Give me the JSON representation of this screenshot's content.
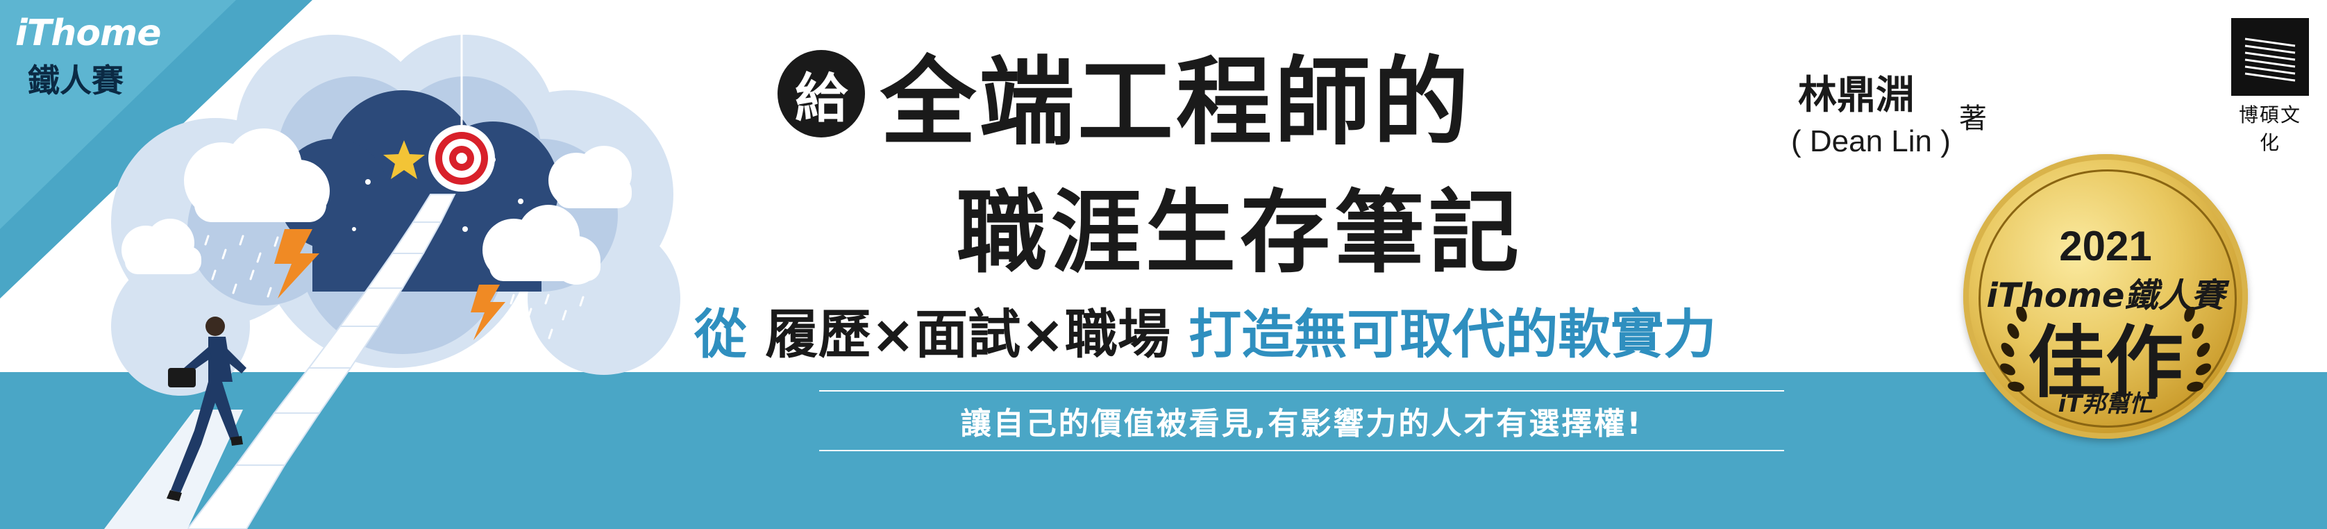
{
  "brand": {
    "logo": "iThome",
    "event": "鐵人賽"
  },
  "title": {
    "badge": "給",
    "line1": "全端工程師的",
    "line2": "職涯生存筆記"
  },
  "author": {
    "name": "林鼎淵",
    "role": "著",
    "english": "( Dean Lin )"
  },
  "subtitle": {
    "lead": "從",
    "middle": "履歷×面試×職場",
    "tail": "打造無可取代的軟實力"
  },
  "tagline": "讓自己的價值被看見,有影響力的人才有選擇權!",
  "publisher": {
    "name": "博碩文化"
  },
  "award": {
    "year": "2021",
    "brand": "iThome鐵人賽",
    "title": "佳作",
    "helper": "iT邦幫忙"
  },
  "colors": {
    "teal": "#4aa6c6",
    "blue_text": "#2f8fbf",
    "dark": "#1a1a1a",
    "gold": "#e9c860",
    "navy_sky": "#2c4a7a"
  },
  "icons": [
    "target-icon",
    "star-icon",
    "lightning-icon",
    "rain-cloud-icon",
    "stairs-icon",
    "businessman-figure"
  ]
}
